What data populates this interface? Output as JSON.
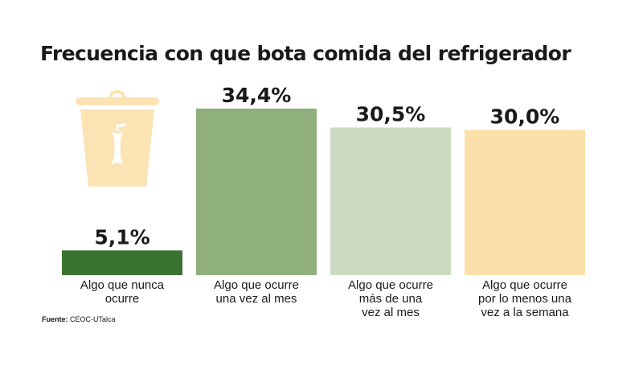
{
  "chart_data": {
    "type": "bar",
    "title": "Frecuencia con que bota comida del refrigerador",
    "categories": [
      [
        "Algo que nunca",
        "ocurre"
      ],
      [
        "Algo que ocurre",
        "una vez al mes"
      ],
      [
        "Algo que ocurre",
        "más de una",
        "vez al mes"
      ],
      [
        "Algo que ocurre",
        "por lo menos una",
        "vez a la semana"
      ]
    ],
    "values": [
      5.1,
      34.4,
      30.5,
      30.0
    ],
    "value_labels": [
      "5,1%",
      "34,4%",
      "30,5%",
      "30,0%"
    ],
    "colors": [
      "#3b7330",
      "#8fb07c",
      "#cbdcc3",
      "#fde0a9"
    ],
    "icon": "trash-bin-apple-core-icon",
    "icon_color": "#fbe3b4",
    "ylim": [
      0,
      34.4
    ],
    "grid": false,
    "legend": "none"
  },
  "source": {
    "label": "Fuente:",
    "text": "CEOC-UTalca"
  }
}
